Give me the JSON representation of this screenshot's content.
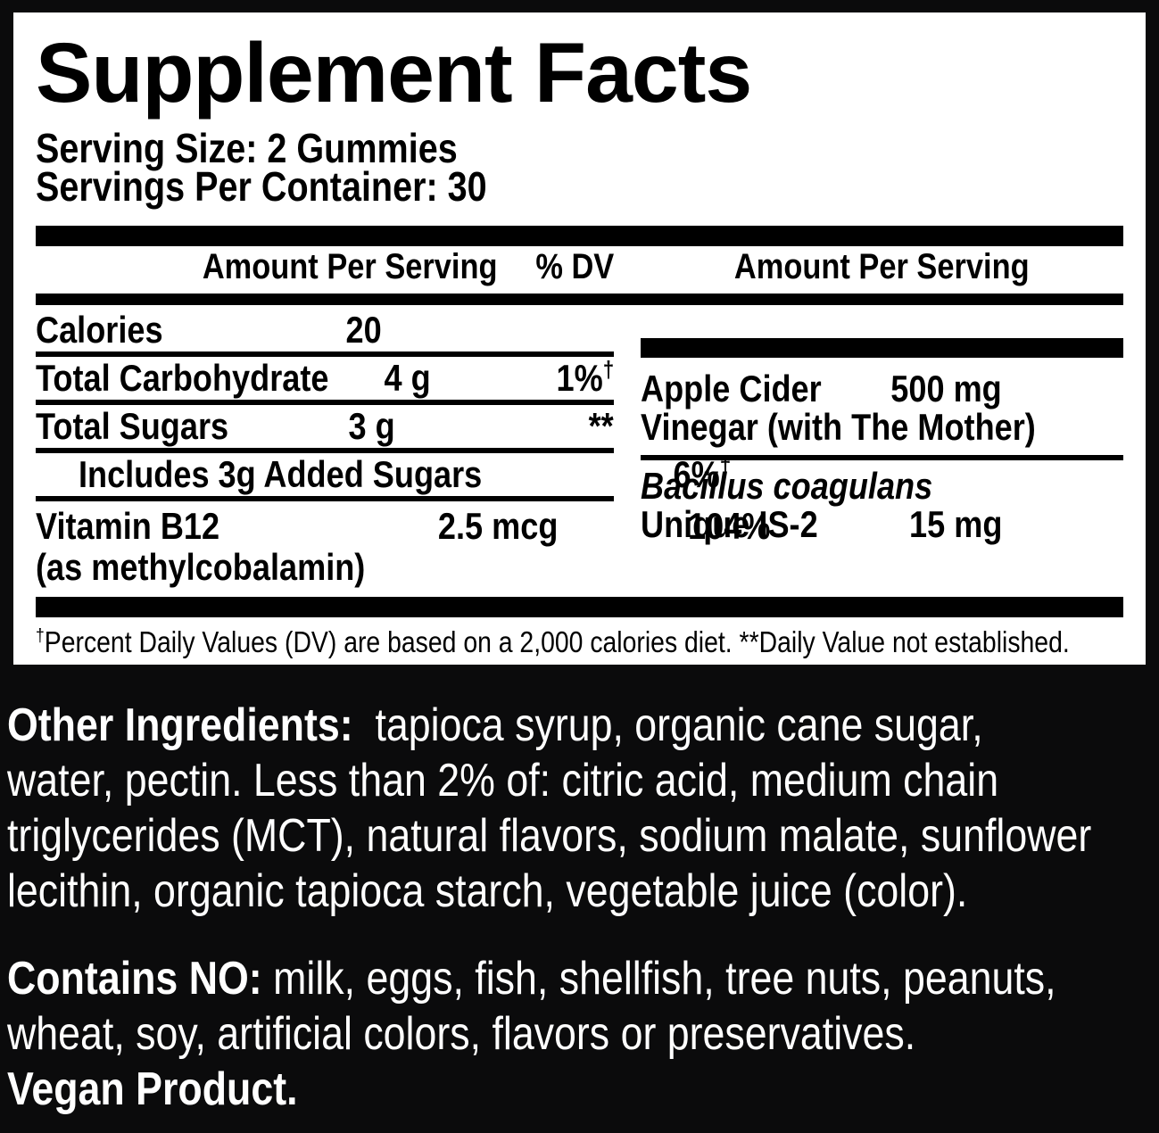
{
  "panel": {
    "title": "Supplement Facts",
    "serving_size": "Serving Size: 2 Gummies",
    "servings_per_container": "Servings Per Container: 30",
    "left_header": {
      "amount": "Amount Per Serving",
      "dv": "% DV"
    },
    "right_header": {
      "amount": "Amount Per Serving"
    },
    "left_rows": [
      {
        "name": "Calories",
        "amount": "20",
        "dv": "",
        "dv_sup": ""
      },
      {
        "name": "Total Carbohydrate",
        "amount": "4 g",
        "dv": "1%",
        "dv_sup": "†"
      },
      {
        "name": "Total Sugars",
        "amount": "3 g",
        "dv": "**",
        "dv_sup": ""
      },
      {
        "name": "Includes 3g Added Sugars",
        "amount": "",
        "dv": "6%",
        "dv_sup": "†"
      },
      {
        "name": "Vitamin B12",
        "name_note": "(as methylcobalamin)",
        "amount": "2.5 mcg",
        "dv": "104%",
        "dv_sup": ""
      }
    ],
    "right_rows": {
      "apple_cider": {
        "name": "Apple Cider",
        "name2": "Vinegar (with The Mother)",
        "amount": "500 mg"
      },
      "bacillus": {
        "species": "Bacillus coagulans",
        "strain": "Unique IS-2",
        "amount": "15 mg"
      }
    },
    "footnote": {
      "sup": "†",
      "text": "Percent Daily Values (DV) are based on a 2,000 calories diet. **Daily Value not established."
    }
  },
  "other_ingredients": {
    "lead": "Other Ingredients:",
    "line1_rest": "  tapioca syrup, organic cane sugar,",
    "line2": "water, pectin. Less than 2% of: citric acid, medium chain",
    "line3": "triglycerides (MCT), natural flavors, sodium malate, sunflower",
    "line4": "lecithin, organic tapioca starch, vegetable juice (color)."
  },
  "contains_no": {
    "lead": "Contains NO:",
    "line1_rest": " milk, eggs, fish, shellfish, tree nuts, peanuts,",
    "line2": "wheat, soy, artificial colors, flavors or preservatives.",
    "vegan": "Vegan Product."
  },
  "colors": {
    "background": "#0b0b0c",
    "panel": "#ffffff",
    "ink": "#000000",
    "text_on_dark": "#ffffff"
  }
}
